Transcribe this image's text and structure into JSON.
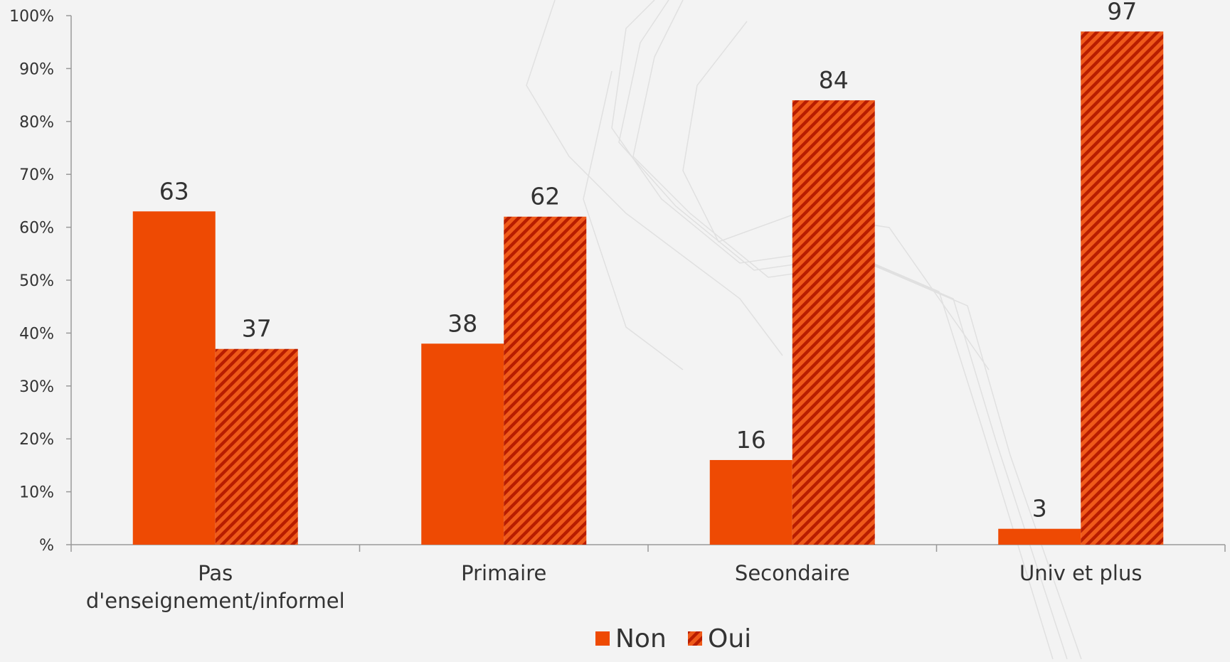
{
  "chart_data": {
    "type": "bar",
    "categories": [
      "Pas d'enseignement/informel",
      "Primaire",
      "Secondaire",
      "Univ et plus"
    ],
    "category_lines": [
      [
        "Pas",
        "d'enseignement/informel"
      ],
      [
        "Primaire"
      ],
      [
        "Secondaire"
      ],
      [
        "Univ et plus"
      ]
    ],
    "series": [
      {
        "name": "Non",
        "values": [
          63,
          38,
          16,
          3
        ],
        "color": "#ee4a03",
        "pattern": "solid"
      },
      {
        "name": "Oui",
        "values": [
          37,
          62,
          84,
          97
        ],
        "color": "#cc2200",
        "pattern": "diagonal-hatch"
      }
    ],
    "data_labels": [
      [
        "63",
        "38",
        "16",
        "3"
      ],
      [
        "37",
        "62",
        "84",
        "97"
      ]
    ],
    "ylim": [
      0,
      100
    ],
    "yticks": [
      0,
      10,
      20,
      30,
      40,
      50,
      60,
      70,
      80,
      90,
      100
    ],
    "ytick_labels": [
      "%",
      "10%",
      "20%",
      "30%",
      "40%",
      "50%",
      "60%",
      "70%",
      "80%",
      "90%",
      "100%"
    ],
    "legend_position": "bottom-center",
    "grid": false
  }
}
